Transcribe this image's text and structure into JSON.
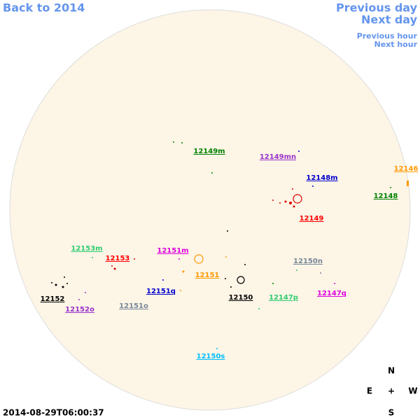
{
  "navigation": {
    "back": "Back to 2014",
    "previous_day": "Previous day",
    "next_day": "Next day",
    "previous_hour": "Previous hour",
    "next_hour": "Next hour"
  },
  "regions": [
    {
      "label": "12149m",
      "color": "#008000"
    },
    {
      "label": "12149mn",
      "color": "#9932cc"
    },
    {
      "label": "12148m",
      "color": "#0000cd"
    },
    {
      "label": "12146",
      "color": "#ff9900"
    },
    {
      "label": "12148",
      "color": "#008000"
    },
    {
      "label": "12149",
      "color": "#ff0000"
    },
    {
      "label": "12153m",
      "color": "#2ecc71"
    },
    {
      "label": "12153",
      "color": "#ff0000"
    },
    {
      "label": "12151m",
      "color": "#dd00dd"
    },
    {
      "label": "12150n",
      "color": "#778899"
    },
    {
      "label": "12151",
      "color": "#ff9900"
    },
    {
      "label": "12151q",
      "color": "#0000cd"
    },
    {
      "label": "12150",
      "color": "#000000"
    },
    {
      "label": "12147p",
      "color": "#2ecc71"
    },
    {
      "label": "12147q",
      "color": "#dd00dd"
    },
    {
      "label": "12152",
      "color": "#000000"
    },
    {
      "label": "12152o",
      "color": "#9932cc"
    },
    {
      "label": "12151o",
      "color": "#778899"
    },
    {
      "label": "12150s",
      "color": "#00bfff"
    }
  ],
  "compass": {
    "north": "N",
    "east": "E",
    "center": "+",
    "west": "W",
    "south": "S"
  },
  "timestamp": "2014-08-29T06:00:37"
}
